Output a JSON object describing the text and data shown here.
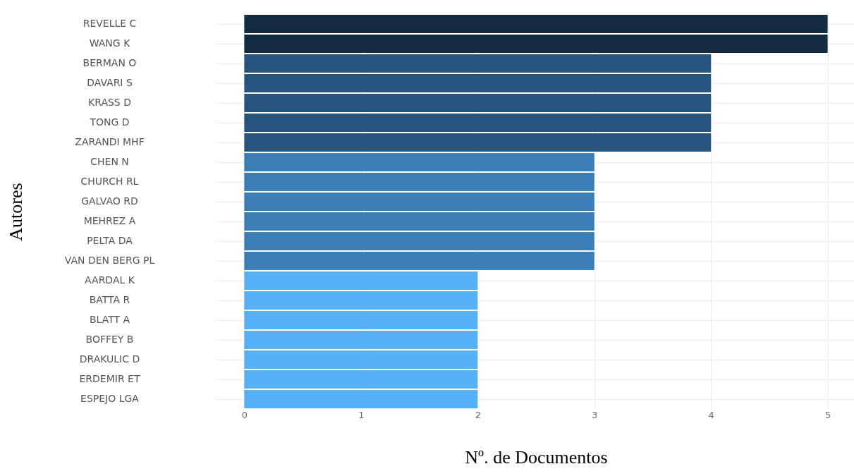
{
  "chart_data": {
    "type": "bar",
    "orientation": "horizontal",
    "xlabel": "Nº. de Documentos",
    "ylabel": "Autores",
    "categories": [
      "REVELLE C",
      "WANG K",
      "BERMAN O",
      "DAVARI S",
      "KRASS D",
      "TONG D",
      "ZARANDI MHF",
      "CHEN N",
      "CHURCH RL",
      "GALVAO RD",
      "MEHREZ A",
      "PELTA DA",
      "VAN DEN BERG PL",
      "AARDAL K",
      "BATTA R",
      "BLATT A",
      "BOFFEY B",
      "DRAKULIC D",
      "ERDEMIR ET",
      "ESPEJO LGA"
    ],
    "values": [
      5,
      5,
      4,
      4,
      4,
      4,
      4,
      3,
      3,
      3,
      3,
      3,
      3,
      2,
      2,
      2,
      2,
      2,
      2,
      2
    ],
    "colors": [
      "#132b43",
      "#132b43",
      "#26547c",
      "#26547c",
      "#26547c",
      "#26547c",
      "#26547c",
      "#3b7eb6",
      "#3b7eb6",
      "#3b7eb6",
      "#3b7eb6",
      "#3b7eb6",
      "#3b7eb6",
      "#56b1f7",
      "#56b1f7",
      "#56b1f7",
      "#56b1f7",
      "#56b1f7",
      "#56b1f7",
      "#56b1f7"
    ],
    "xlim": [
      -0.25,
      5.25
    ],
    "xticks": [
      0,
      1,
      2,
      3,
      4,
      5
    ],
    "grid": true
  }
}
